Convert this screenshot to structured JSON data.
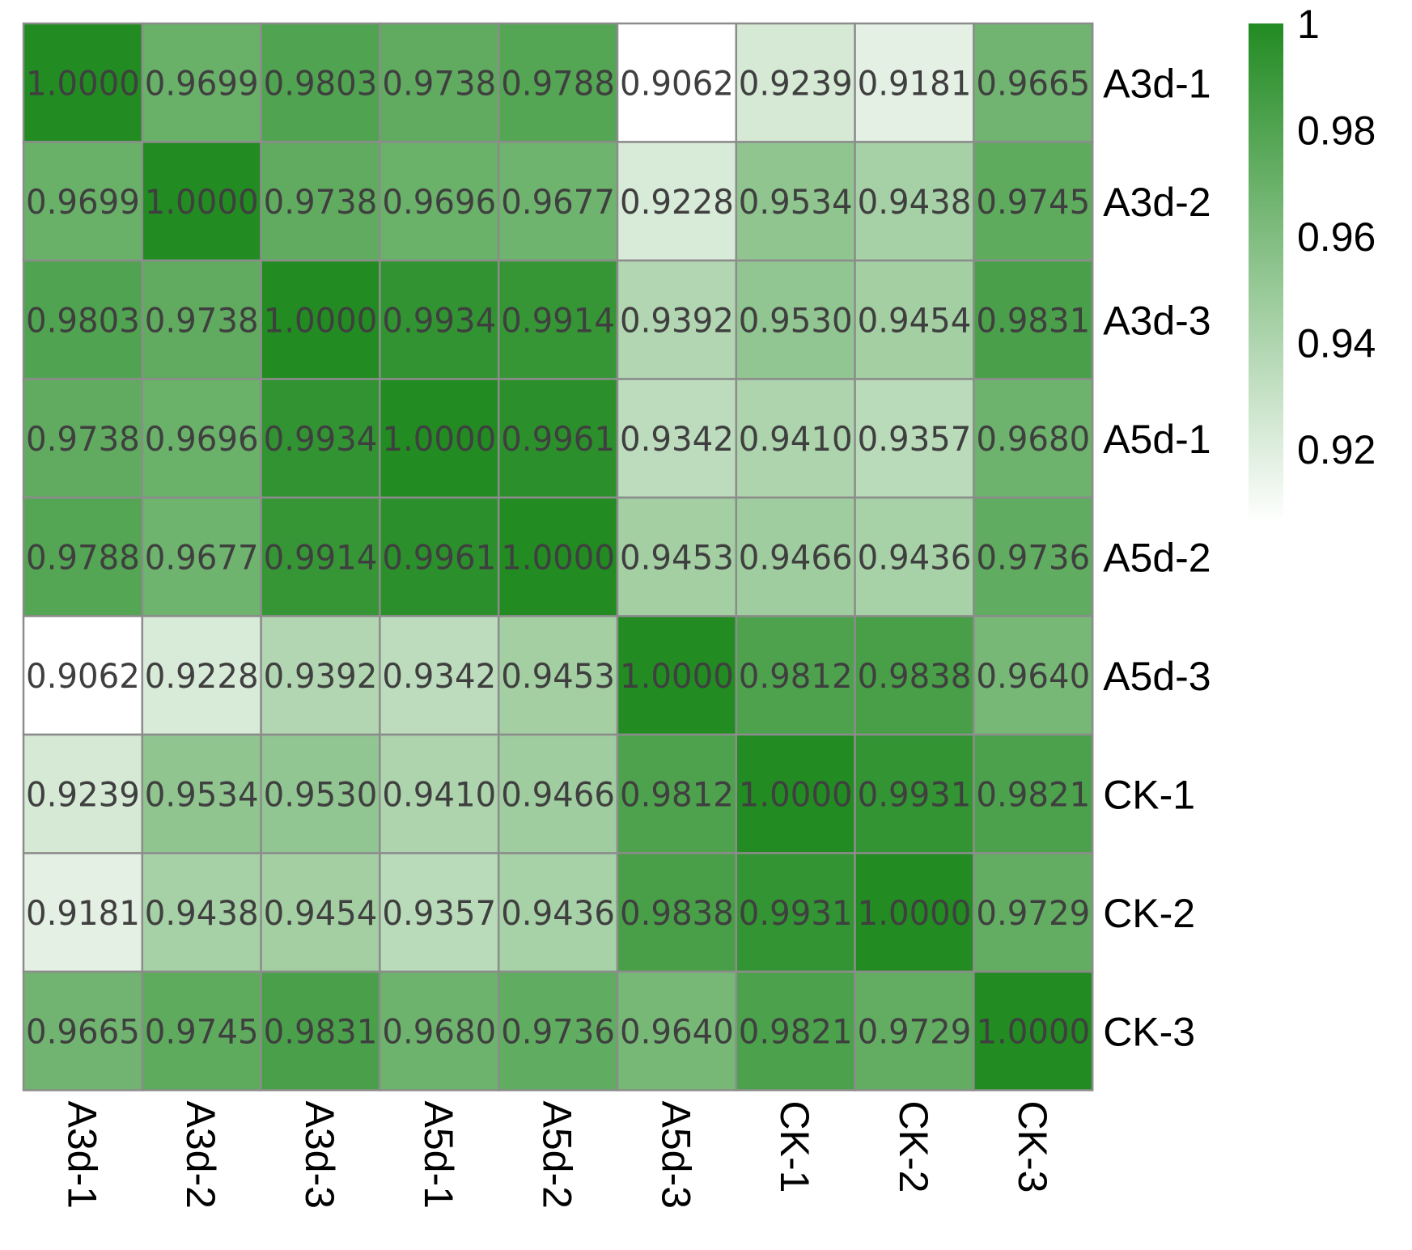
{
  "chart_data": {
    "type": "heatmap",
    "title": "",
    "xlabel": "",
    "ylabel": "",
    "rows": [
      "A3d-1",
      "A3d-2",
      "A3d-3",
      "A5d-1",
      "A5d-2",
      "A5d-3",
      "CK-1",
      "CK-2",
      "CK-3"
    ],
    "columns": [
      "A3d-1",
      "A3d-2",
      "A3d-3",
      "A5d-1",
      "A5d-2",
      "A5d-3",
      "CK-1",
      "CK-2",
      "CK-3"
    ],
    "values": [
      [
        1.0,
        0.9699,
        0.9803,
        0.9738,
        0.9788,
        0.9062,
        0.9239,
        0.9181,
        0.9665
      ],
      [
        0.9699,
        1.0,
        0.9738,
        0.9696,
        0.9677,
        0.9228,
        0.9534,
        0.9438,
        0.9745
      ],
      [
        0.9803,
        0.9738,
        1.0,
        0.9934,
        0.9914,
        0.9392,
        0.953,
        0.9454,
        0.9831
      ],
      [
        0.9738,
        0.9696,
        0.9934,
        1.0,
        0.9961,
        0.9342,
        0.941,
        0.9357,
        0.968
      ],
      [
        0.9788,
        0.9677,
        0.9914,
        0.9961,
        1.0,
        0.9453,
        0.9466,
        0.9436,
        0.9736
      ],
      [
        0.9062,
        0.9228,
        0.9392,
        0.9342,
        0.9453,
        1.0,
        0.9812,
        0.9838,
        0.964
      ],
      [
        0.9239,
        0.9534,
        0.953,
        0.941,
        0.9466,
        0.9812,
        1.0,
        0.9931,
        0.9821
      ],
      [
        0.9181,
        0.9438,
        0.9454,
        0.9357,
        0.9436,
        0.9838,
        0.9931,
        1.0,
        0.9729
      ],
      [
        0.9665,
        0.9745,
        0.9831,
        0.968,
        0.9736,
        0.964,
        0.9821,
        0.9729,
        1.0
      ]
    ],
    "value_format": "4 decimals",
    "color_scale": {
      "min": 0.9062,
      "max": 1.0,
      "low_color": "#ffffff",
      "high_color": "#228b22"
    },
    "cell_border_color": "#8c8c8c",
    "legend": {
      "ticks": [
        {
          "value": 1.0,
          "label": "1"
        },
        {
          "value": 0.98,
          "label": "0.98"
        },
        {
          "value": 0.96,
          "label": "0.96"
        },
        {
          "value": 0.94,
          "label": "0.94"
        },
        {
          "value": 0.92,
          "label": "0.92"
        }
      ],
      "placement": "right"
    },
    "row_labels_position": "right",
    "column_labels_position": "bottom, rotated 90 degrees"
  }
}
